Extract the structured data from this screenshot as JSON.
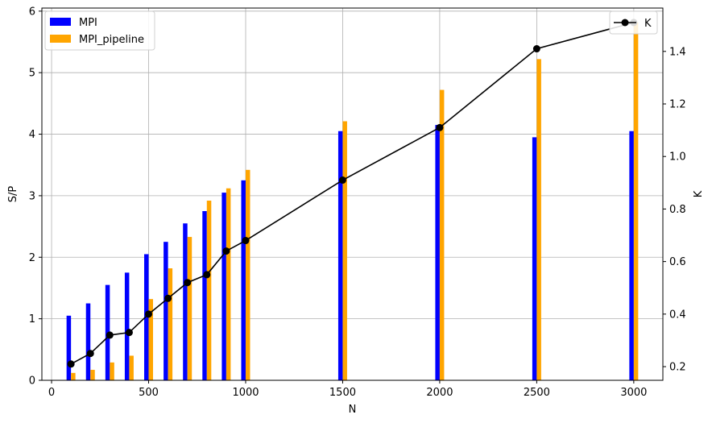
{
  "chart_data": {
    "type": "bar+line",
    "x": [
      100,
      200,
      300,
      400,
      500,
      600,
      700,
      800,
      900,
      1000,
      1500,
      2000,
      2500,
      3000
    ],
    "series": [
      {
        "name": "MPI",
        "type": "bar",
        "axis": "left",
        "color": "#0000ff",
        "values": [
          1.05,
          1.25,
          1.55,
          1.75,
          2.05,
          2.25,
          2.55,
          2.75,
          3.05,
          3.25,
          4.05,
          4.15,
          3.95,
          4.05
        ]
      },
      {
        "name": "MPI_pipeline",
        "type": "bar",
        "axis": "left",
        "color": "#ffa500",
        "values": [
          0.12,
          0.17,
          0.29,
          0.4,
          1.32,
          1.82,
          2.33,
          2.92,
          3.12,
          3.42,
          4.21,
          4.72,
          5.22,
          5.82
        ]
      },
      {
        "name": "K",
        "type": "line",
        "axis": "right",
        "color": "#000000",
        "values": [
          0.21,
          0.25,
          0.32,
          0.33,
          0.4,
          0.46,
          0.52,
          0.55,
          0.64,
          0.68,
          0.91,
          1.11,
          1.41,
          1.51
        ]
      }
    ],
    "xlabel": "N",
    "ylabel": "S/P",
    "y2label": "K",
    "xlim": [
      -50,
      3150
    ],
    "ylim": [
      0,
      6.05
    ],
    "y2lim": [
      0.148,
      1.565
    ],
    "xticks": [
      0,
      500,
      1000,
      1500,
      2000,
      2500,
      3000
    ],
    "yticks": [
      0,
      1,
      2,
      3,
      4,
      5,
      6
    ],
    "y2ticks": [
      0.2,
      0.4,
      0.6,
      0.8,
      1.0,
      1.2,
      1.4
    ],
    "grid": true,
    "legend_left": "top-left",
    "legend_right": "top-right"
  },
  "axes": {
    "xlabel": "N",
    "ylabel": "S/P",
    "y2label": "K"
  }
}
